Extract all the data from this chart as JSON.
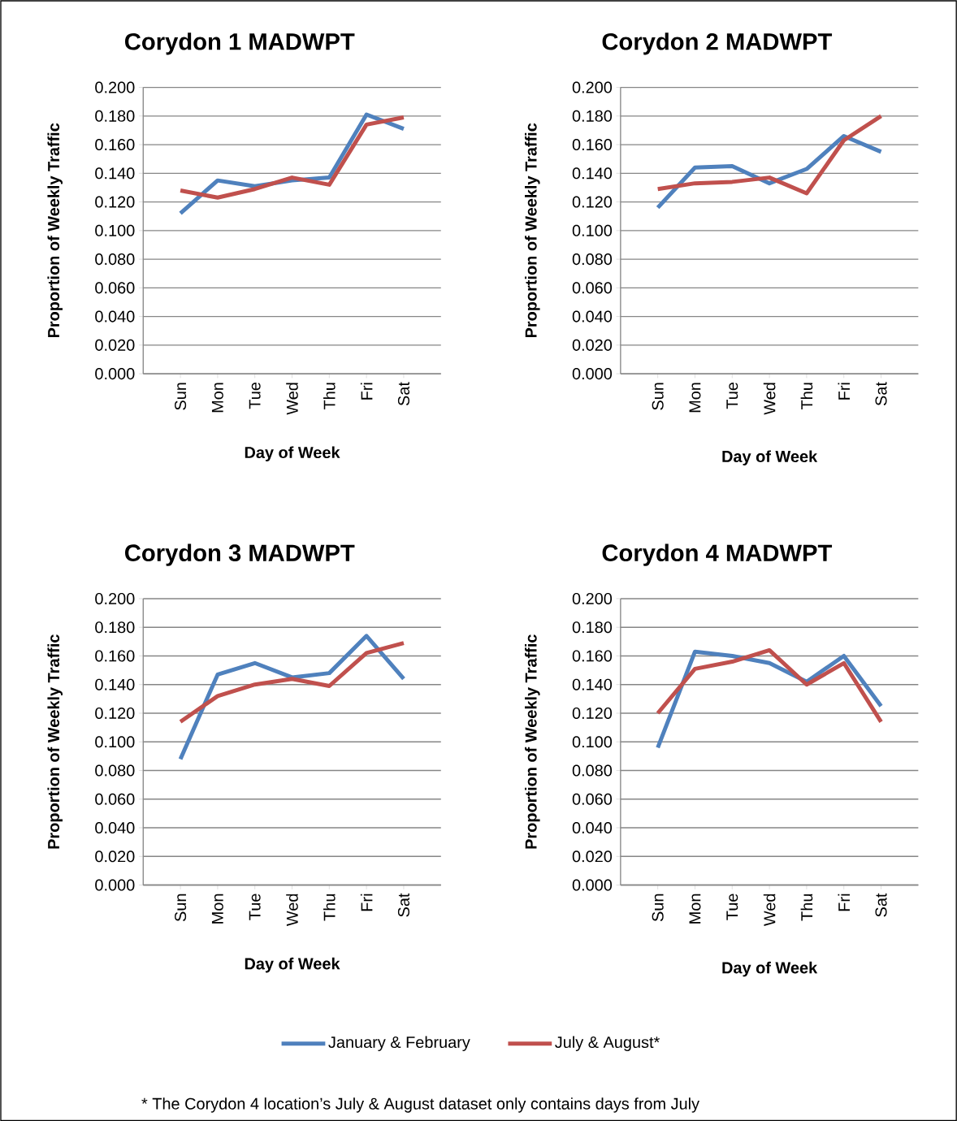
{
  "chart_data": [
    {
      "type": "line",
      "title": "Corydon 1 MADWPT",
      "xlabel": "Day of Week",
      "ylabel": "Proportion of Weekly Traffic",
      "categories": [
        "Sun",
        "Mon",
        "Tue",
        "Wed",
        "Thu",
        "Fri",
        "Sat"
      ],
      "ylim": [
        0,
        0.2
      ],
      "yticks": [
        {
          "value": 0,
          "label": "0.000"
        },
        {
          "value": 0.02,
          "label": "0.020"
        },
        {
          "value": 0.04,
          "label": "0.040"
        },
        {
          "value": 0.06,
          "label": "0.060"
        },
        {
          "value": 0.08,
          "label": "0.080"
        },
        {
          "value": 0.1,
          "label": "0.100"
        },
        {
          "value": 0.12,
          "label": "0.120"
        },
        {
          "value": 0.14,
          "label": "0.140"
        },
        {
          "value": 0.16,
          "label": "0.160"
        },
        {
          "value": 0.18,
          "label": "0.180"
        },
        {
          "value": 0.2,
          "label": "0.200"
        }
      ],
      "grid": "y",
      "series": [
        {
          "color": "#4f81bd",
          "values": [
            0.112,
            0.135,
            0.131,
            0.135,
            0.137,
            0.181,
            0.171
          ]
        },
        {
          "color": "#c0504d",
          "values": [
            0.128,
            0.123,
            0.129,
            0.137,
            0.132,
            0.174,
            0.179
          ]
        }
      ]
    },
    {
      "type": "line",
      "title": "Corydon 2 MADWPT",
      "xlabel": "Day of Week",
      "ylabel": "Proportion of Weekly Traffic",
      "categories": [
        "Sun",
        "Mon",
        "Tue",
        "Wed",
        "Thu",
        "Fri",
        "Sat"
      ],
      "ylim": [
        0,
        0.2
      ],
      "yticks": [
        {
          "value": 0,
          "label": "0.000"
        },
        {
          "value": 0.02,
          "label": "0.020"
        },
        {
          "value": 0.04,
          "label": "0.040"
        },
        {
          "value": 0.06,
          "label": "0.060"
        },
        {
          "value": 0.08,
          "label": "0.080"
        },
        {
          "value": 0.1,
          "label": "0.100"
        },
        {
          "value": 0.12,
          "label": "0.120"
        },
        {
          "value": 0.14,
          "label": "0.140"
        },
        {
          "value": 0.16,
          "label": "0.160"
        },
        {
          "value": 0.18,
          "label": "0.180"
        },
        {
          "value": 0.2,
          "label": "0.200"
        }
      ],
      "grid": "y",
      "series": [
        {
          "color": "#4f81bd",
          "values": [
            0.116,
            0.144,
            0.145,
            0.133,
            0.143,
            0.166,
            0.155
          ]
        },
        {
          "color": "#c0504d",
          "values": [
            0.129,
            0.133,
            0.134,
            0.137,
            0.126,
            0.163,
            0.18
          ]
        }
      ]
    },
    {
      "type": "line",
      "title": "Corydon 3 MADWPT",
      "xlabel": "Day of Week",
      "ylabel": "Proportion of Weekly Traffic",
      "categories": [
        "Sun",
        "Mon",
        "Tue",
        "Wed",
        "Thu",
        "Fri",
        "Sat"
      ],
      "ylim": [
        0,
        0.2
      ],
      "yticks": [
        {
          "value": 0,
          "label": "0.000"
        },
        {
          "value": 0.02,
          "label": "0.020"
        },
        {
          "value": 0.04,
          "label": "0.040"
        },
        {
          "value": 0.06,
          "label": "0.060"
        },
        {
          "value": 0.08,
          "label": "0.080"
        },
        {
          "value": 0.1,
          "label": "0.100"
        },
        {
          "value": 0.12,
          "label": "0.120"
        },
        {
          "value": 0.14,
          "label": "0.140"
        },
        {
          "value": 0.16,
          "label": "0.160"
        },
        {
          "value": 0.18,
          "label": "0.180"
        },
        {
          "value": 0.2,
          "label": "0.200"
        }
      ],
      "grid": "y",
      "series": [
        {
          "color": "#4f81bd",
          "values": [
            0.088,
            0.147,
            0.155,
            0.145,
            0.148,
            0.174,
            0.144
          ]
        },
        {
          "color": "#c0504d",
          "values": [
            0.114,
            0.132,
            0.14,
            0.144,
            0.139,
            0.162,
            0.169
          ]
        }
      ]
    },
    {
      "type": "line",
      "title": "Corydon 4 MADWPT",
      "xlabel": "Day of Week",
      "ylabel": "Proportion of Weekly Traffic",
      "categories": [
        "Sun",
        "Mon",
        "Tue",
        "Wed",
        "Thu",
        "Fri",
        "Sat"
      ],
      "ylim": [
        0,
        0.2
      ],
      "yticks": [
        {
          "value": 0,
          "label": "0.000"
        },
        {
          "value": 0.02,
          "label": "0.020"
        },
        {
          "value": 0.04,
          "label": "0.040"
        },
        {
          "value": 0.06,
          "label": "0.060"
        },
        {
          "value": 0.08,
          "label": "0.080"
        },
        {
          "value": 0.1,
          "label": "0.100"
        },
        {
          "value": 0.12,
          "label": "0.120"
        },
        {
          "value": 0.14,
          "label": "0.140"
        },
        {
          "value": 0.16,
          "label": "0.160"
        },
        {
          "value": 0.18,
          "label": "0.180"
        },
        {
          "value": 0.2,
          "label": "0.200"
        }
      ],
      "grid": "y",
      "legend": "bottom",
      "annotations": [
        "* The Corydon 4 location’s July & August dataset only contains days from July"
      ],
      "series": [
        {
          "name": "January & February",
          "color": "#4f81bd",
          "values": [
            0.096,
            0.163,
            0.16,
            0.155,
            0.142,
            0.16,
            0.125
          ]
        },
        {
          "name": "July & August*",
          "color": "#c0504d",
          "values": [
            0.12,
            0.151,
            0.156,
            0.164,
            0.14,
            0.155,
            0.114
          ]
        }
      ]
    }
  ]
}
